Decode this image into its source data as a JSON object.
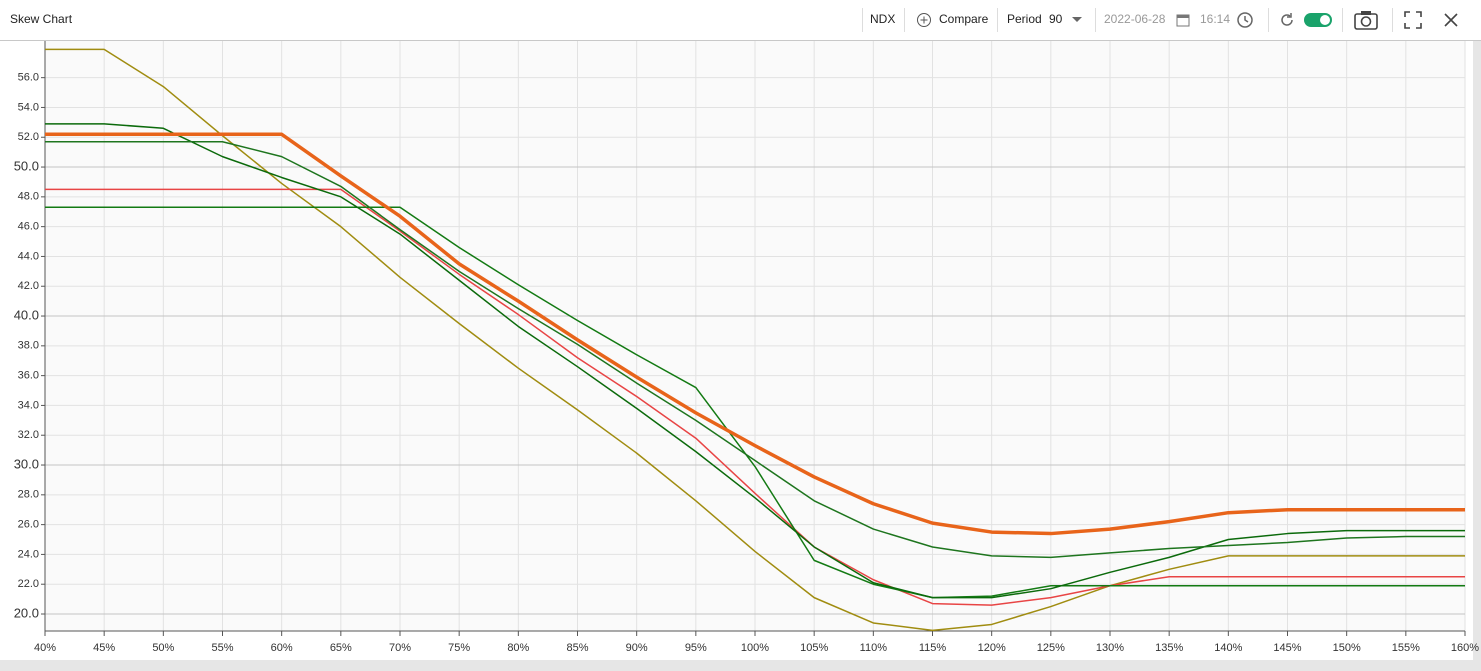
{
  "toolbar": {
    "title": "Skew Chart",
    "symbol": "NDX",
    "compare": "Compare",
    "period_label": "Period",
    "period_value": "90",
    "date": "2022-06-28",
    "time": "16:14"
  },
  "chart_data": {
    "type": "line",
    "categories": [
      "40%",
      "45%",
      "50%",
      "55%",
      "60%",
      "65%",
      "70%",
      "75%",
      "80%",
      "85%",
      "90%",
      "95%",
      "100%",
      "105%",
      "110%",
      "115%",
      "120%",
      "125%",
      "130%",
      "135%",
      "140%",
      "145%",
      "150%",
      "155%",
      "160%"
    ],
    "ylim": [
      18.86,
      58.46
    ],
    "yticks": [
      {
        "value": 20,
        "label": "20.0"
      },
      {
        "value": 22,
        "label": "22.0"
      },
      {
        "value": 24,
        "label": "24.0"
      },
      {
        "value": 26,
        "label": "26.0"
      },
      {
        "value": 28,
        "label": "28.0"
      },
      {
        "value": 30,
        "label": "30.0"
      },
      {
        "value": 32,
        "label": "32.0"
      },
      {
        "value": 34,
        "label": "34.0"
      },
      {
        "value": 36,
        "label": "36.0"
      },
      {
        "value": 38,
        "label": "38.0"
      },
      {
        "value": 40,
        "label": "40.0"
      },
      {
        "value": 42,
        "label": "42.0"
      },
      {
        "value": 44,
        "label": "44.0"
      },
      {
        "value": 46,
        "label": "46.0"
      },
      {
        "value": 48,
        "label": "48.0"
      },
      {
        "value": 50,
        "label": "50.0"
      },
      {
        "value": 52,
        "label": "52.0"
      },
      {
        "value": 54,
        "label": "54.0"
      },
      {
        "value": 56,
        "label": "56.0"
      }
    ],
    "grid": true,
    "series": [
      {
        "color": "#a08c10",
        "width": 1.5,
        "values": [
          57.9,
          57.9,
          55.4,
          52.1,
          48.9,
          46.0,
          42.6,
          39.5,
          36.5,
          33.7,
          30.8,
          27.6,
          24.2,
          21.1,
          19.4,
          18.9,
          19.3,
          20.5,
          21.9,
          23.0,
          23.9,
          23.9,
          23.9,
          23.9,
          23.9
        ]
      },
      {
        "color": "#e84545",
        "width": 1.5,
        "values": [
          48.5,
          48.5,
          48.5,
          48.5,
          48.5,
          48.5,
          45.7,
          42.8,
          40.1,
          37.2,
          34.6,
          31.8,
          28.1,
          24.5,
          22.3,
          20.7,
          20.6,
          21.1,
          21.9,
          22.5,
          22.5,
          22.5,
          22.5,
          22.5,
          22.5
        ]
      },
      {
        "color": "#137a13",
        "width": 1.5,
        "values": [
          47.3,
          47.3,
          47.3,
          47.3,
          47.3,
          47.3,
          47.3,
          44.6,
          42.1,
          39.7,
          37.4,
          35.2,
          29.9,
          23.6,
          22.0,
          21.1,
          21.2,
          21.9,
          21.9,
          21.9,
          21.9,
          21.9,
          21.9,
          21.9,
          21.9
        ]
      },
      {
        "color": "#0b6a0b",
        "width": 1.5,
        "values": [
          52.9,
          52.9,
          52.6,
          50.7,
          49.3,
          48.0,
          45.5,
          42.4,
          39.3,
          36.6,
          33.8,
          30.9,
          27.8,
          24.5,
          22.1,
          21.1,
          21.1,
          21.7,
          22.8,
          23.8,
          25.0,
          25.4,
          25.6,
          25.6,
          25.6
        ]
      },
      {
        "color": "#1e751e",
        "width": 1.5,
        "values": [
          51.7,
          51.7,
          51.7,
          51.7,
          50.7,
          48.7,
          45.8,
          43.0,
          40.5,
          38.1,
          35.5,
          33.0,
          30.3,
          27.6,
          25.7,
          24.5,
          23.9,
          23.8,
          24.1,
          24.4,
          24.6,
          24.8,
          25.1,
          25.2,
          25.2
        ]
      },
      {
        "color": "#e8641a",
        "width": 3.5,
        "values": [
          52.2,
          52.2,
          52.2,
          52.2,
          52.2,
          49.4,
          46.7,
          43.5,
          41.0,
          38.4,
          35.9,
          33.5,
          31.3,
          29.2,
          27.4,
          26.1,
          25.5,
          25.4,
          25.7,
          26.2,
          26.8,
          27.0,
          27.0,
          27.0,
          27.0
        ]
      }
    ]
  }
}
